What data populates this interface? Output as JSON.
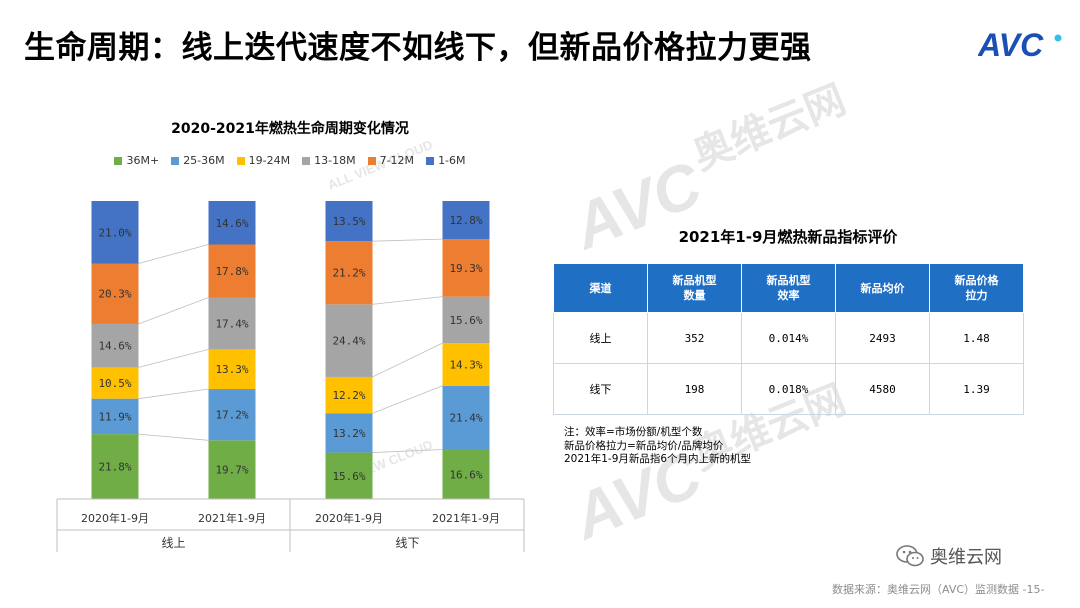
{
  "slide": {
    "title": "生命周期：线上迭代速度不如线下，但新品价格拉力更强",
    "logo_text": "AVC",
    "watermark_texts": [
      "奥维云网",
      "ALL VIEW CLOUD",
      "AVC"
    ],
    "wechat_label": "奥维云网",
    "footer": "数据来源：奥维云网（AVC）监测数据 -15-"
  },
  "colors": {
    "36M+": "#70ad47",
    "25-36M": "#5b9bd5",
    "19-24M": "#ffc000",
    "13-18M": "#a5a5a5",
    "7-12M": "#ed7d31",
    "1-6M": "#4472c4",
    "table_header": "#1f6fc5"
  },
  "chart_data": {
    "type": "bar",
    "stacked": true,
    "normalized_percent": true,
    "title": "2020-2021年燃热生命周期变化情况",
    "legend_position": "top",
    "categories": [
      "2020年1-9月",
      "2021年1-9月",
      "2020年1-9月",
      "2021年1-9月"
    ],
    "groups": [
      {
        "label": "线上",
        "categories": [
          0,
          1
        ]
      },
      {
        "label": "线下",
        "categories": [
          2,
          3
        ]
      }
    ],
    "series": [
      {
        "name": "36M+",
        "values": [
          21.8,
          19.7,
          15.6,
          16.6
        ]
      },
      {
        "name": "25-36M",
        "values": [
          11.9,
          17.2,
          13.2,
          21.4
        ]
      },
      {
        "name": "19-24M",
        "values": [
          10.5,
          13.3,
          12.2,
          14.3
        ]
      },
      {
        "name": "13-18M",
        "values": [
          14.6,
          17.4,
          24.4,
          15.6
        ]
      },
      {
        "name": "7-12M",
        "values": [
          20.3,
          17.8,
          21.2,
          19.3
        ]
      },
      {
        "name": "1-6M",
        "values": [
          21.0,
          14.6,
          13.5,
          12.8
        ]
      }
    ],
    "value_suffix": "%"
  },
  "table": {
    "title": "2021年1-9月燃热新品指标评价",
    "headers": [
      "渠道",
      "新品机型\n数量",
      "新品机型\n效率",
      "新品均价",
      "新品价格\n拉力"
    ],
    "rows": [
      [
        "线上",
        "352",
        "0.014%",
        "2493",
        "1.48"
      ],
      [
        "线下",
        "198",
        "0.018%",
        "4580",
        "1.39"
      ]
    ]
  },
  "notes": [
    "注：效率=市场份额/机型个数",
    "新品价格拉力=新品均价/品牌均价",
    "2021年1-9月新品指6个月内上新的机型"
  ]
}
